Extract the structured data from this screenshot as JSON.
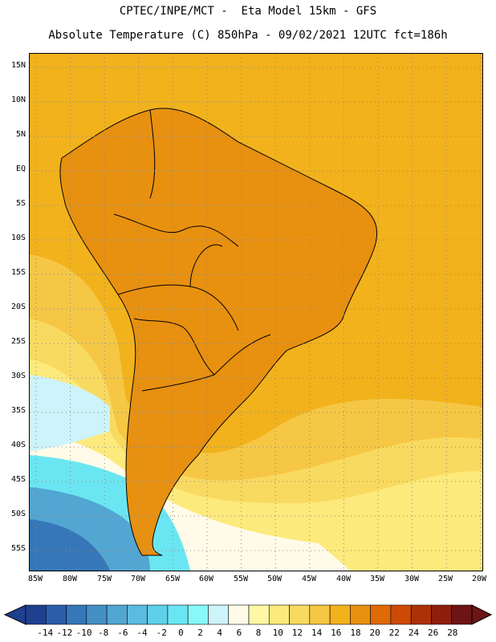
{
  "header": {
    "line1": "CPTEC/INPE/MCT -  Eta Model 15km - GFS",
    "line2": "Absolute Temperature (C) 850hPa - 09/02/2021 12UTC fct=186h"
  },
  "axes": {
    "lat_labels": [
      "15N",
      "10N",
      "5N",
      "EQ",
      "5S",
      "10S",
      "15S",
      "20S",
      "25S",
      "30S",
      "35S",
      "40S",
      "45S",
      "50S",
      "55S"
    ],
    "lon_labels": [
      "85W",
      "80W",
      "75W",
      "70W",
      "65W",
      "60W",
      "55W",
      "50W",
      "45W",
      "40W",
      "35W",
      "30W",
      "25W",
      "20W"
    ]
  },
  "colorbar": {
    "labels": [
      "-14",
      "-12",
      "-10",
      "-8",
      "-6",
      "-4",
      "-2",
      "0",
      "2",
      "4",
      "6",
      "8",
      "10",
      "12",
      "14",
      "16",
      "18",
      "20",
      "22",
      "24",
      "26",
      "28"
    ],
    "colors": [
      "#1f3f8f",
      "#2a5ea8",
      "#3577b8",
      "#4490c6",
      "#52a6d2",
      "#5dbbe0",
      "#5fd0ea",
      "#6ae6f2",
      "#88f8f8",
      "#cdf4fa",
      "#fffbe8",
      "#fff7a6",
      "#fdea7c",
      "#f9da60",
      "#f5c744",
      "#f2b21c",
      "#e8900f",
      "#e06a08",
      "#cd4a06",
      "#ad3006",
      "#8e1f0c",
      "#6e1414"
    ]
  },
  "map_colors": {
    "ocean_warm": "#f2b21c",
    "ocean_mid": "#f5c744",
    "ocean_cool": "#f9da60",
    "ocean_pale": "#fdea7c",
    "cold_pale": "#cdf4fa",
    "cold_cyan": "#6ae6f2",
    "cold_blue": "#52a6d2",
    "cold_deep": "#3577b8",
    "land_hot": "#e8900f",
    "land_hotter": "#e06a08",
    "border": "#000000"
  }
}
